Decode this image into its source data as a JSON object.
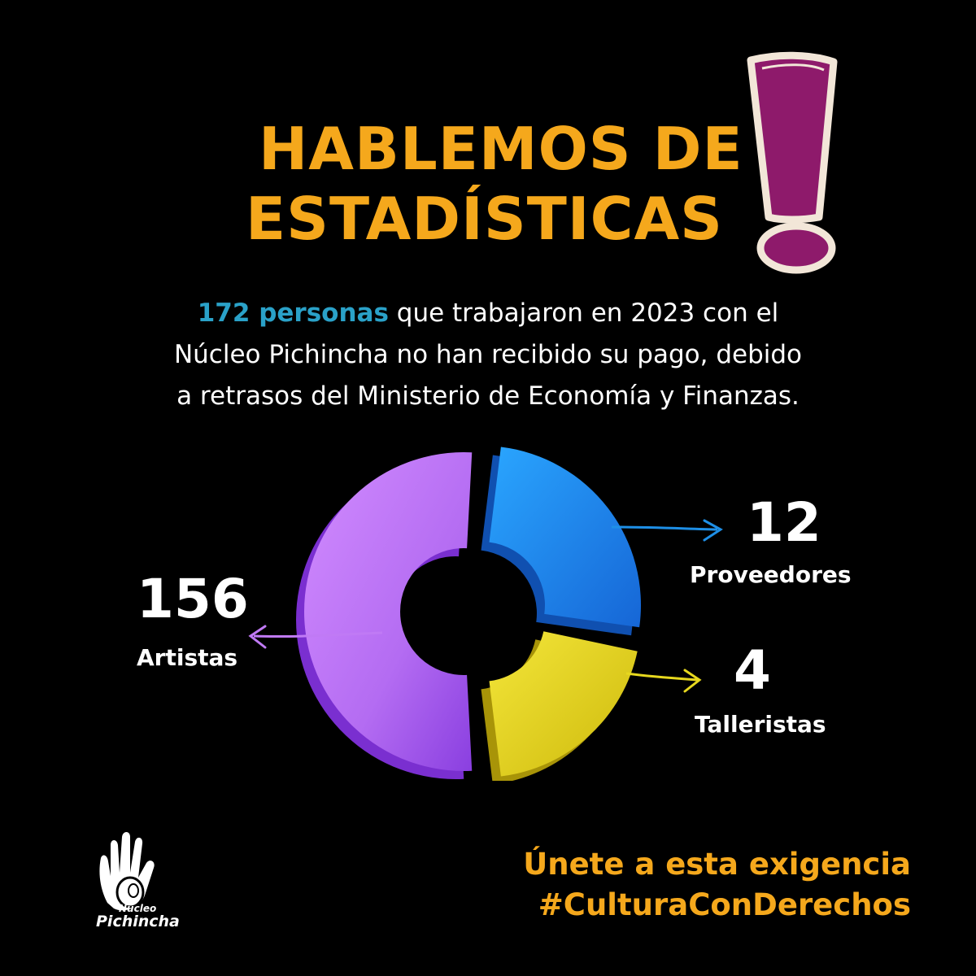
{
  "header": {
    "title_line1": "HABLEMOS DE",
    "title_line2": "ESTADÍSTICAS"
  },
  "intro": {
    "highlight": "172 personas",
    "line1_rest": " que trabajaron en 2023 con el",
    "line2": "Núcleo Pichincha no han recibido su pago, debido",
    "line3": "a retrasos del Ministerio de Economía y Finanzas."
  },
  "colors": {
    "accent": "#f5a81c",
    "highlight": "#2aa1c8",
    "artistas": "#c07af5",
    "proveedores": "#1e8fe6",
    "talleristas": "#e7d81e",
    "exclaim": "#8e1a6b"
  },
  "chart_data": {
    "type": "pie",
    "categories": [
      "Artistas",
      "Proveedores",
      "Talleristas"
    ],
    "values": [
      156,
      12,
      4
    ],
    "total": 172
  },
  "labels": {
    "artistas_value": "156",
    "artistas_label": "Artistas",
    "proveedores_value": "12",
    "proveedores_label": "Proveedores",
    "talleristas_value": "4",
    "talleristas_label": "Talleristas"
  },
  "cta": {
    "line1": "Únete a esta exigencia",
    "line2": "#CulturaConDerechos"
  },
  "logo": {
    "icon": "hand-icon",
    "line1": "Núcleo",
    "line2": "Pichincha"
  }
}
